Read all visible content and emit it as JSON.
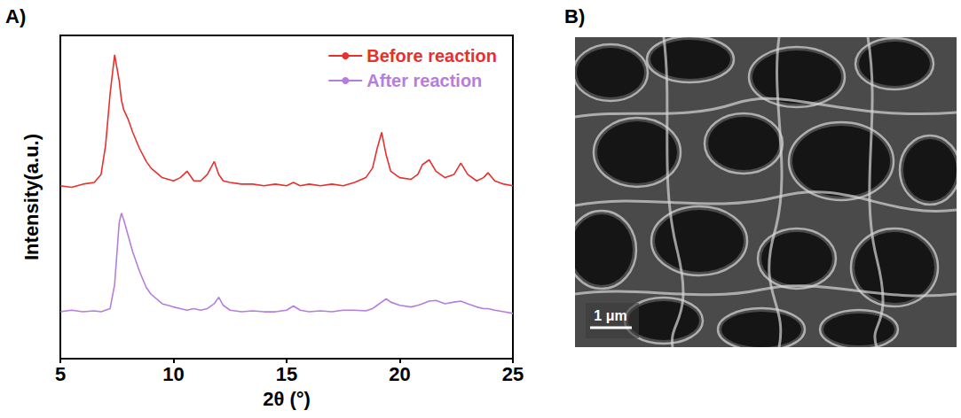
{
  "chart_data": {
    "type": "line",
    "panel_label": "A)",
    "x_label": "2θ (°)",
    "y_label": "Intensity(a.u.)",
    "x": [
      5,
      5.5,
      6,
      6.5,
      6.8,
      7.0,
      7.2,
      7.4,
      7.6,
      7.7,
      7.8,
      8.0,
      8.2,
      8.5,
      8.8,
      9.0,
      9.5,
      10.0,
      10.3,
      10.6,
      10.9,
      11.2,
      11.5,
      11.8,
      12.0,
      12.2,
      12.5,
      13,
      13.5,
      14,
      14.5,
      15,
      15.3,
      15.6,
      16,
      16.5,
      17,
      17.5,
      18,
      18.5,
      18.8,
      19.0,
      19.2,
      19.4,
      19.6,
      20.0,
      20.5,
      20.8,
      21.0,
      21.3,
      21.6,
      22.0,
      22.4,
      22.7,
      23.0,
      23.4,
      23.7,
      23.9,
      24.2,
      24.6,
      25
    ],
    "series": [
      {
        "name": "Before reaction",
        "color": "#e8302e",
        "values": [
          53.5,
          53,
          54,
          54.5,
          57,
          66,
          82,
          94,
          86,
          80,
          77,
          74,
          70,
          65,
          61,
          59,
          56,
          55,
          56,
          58,
          55,
          55,
          57,
          61,
          57,
          55,
          54.5,
          54,
          54,
          53.5,
          54,
          53.5,
          54.5,
          53.5,
          54,
          53.5,
          54,
          53.5,
          54.5,
          56,
          59,
          65,
          70,
          63,
          58,
          56,
          55.5,
          57,
          60,
          61.5,
          58,
          56,
          57,
          60.5,
          57,
          55,
          56,
          57.5,
          55,
          54,
          53.5
        ]
      },
      {
        "name": "After reaction",
        "color": "#b57edc",
        "values": [
          14.5,
          15,
          14.5,
          14.8,
          14.5,
          15,
          15.5,
          23,
          42,
          45,
          43,
          38,
          33,
          27,
          22,
          20,
          17,
          16,
          15.5,
          15,
          15.5,
          15,
          15.5,
          17,
          19,
          16.5,
          15,
          14.5,
          14.8,
          14.5,
          14.5,
          15,
          16.3,
          15,
          14.5,
          14.8,
          14.5,
          15,
          15,
          14.8,
          15.5,
          16.5,
          17.5,
          18.5,
          17.5,
          16.5,
          16,
          16.5,
          17,
          17.8,
          18,
          17,
          17.5,
          17.8,
          17,
          16,
          15.5,
          15.5,
          15,
          14.5,
          14
        ]
      }
    ],
    "xlim": [
      5,
      25
    ],
    "xticks": [
      5,
      10,
      15,
      20,
      25
    ],
    "ylim": [
      0,
      100
    ],
    "tick_labels": "x",
    "grid": false,
    "legend": "top-right"
  },
  "sem_image": {
    "panel_label": "B)",
    "scale_bar": "1 μm"
  }
}
